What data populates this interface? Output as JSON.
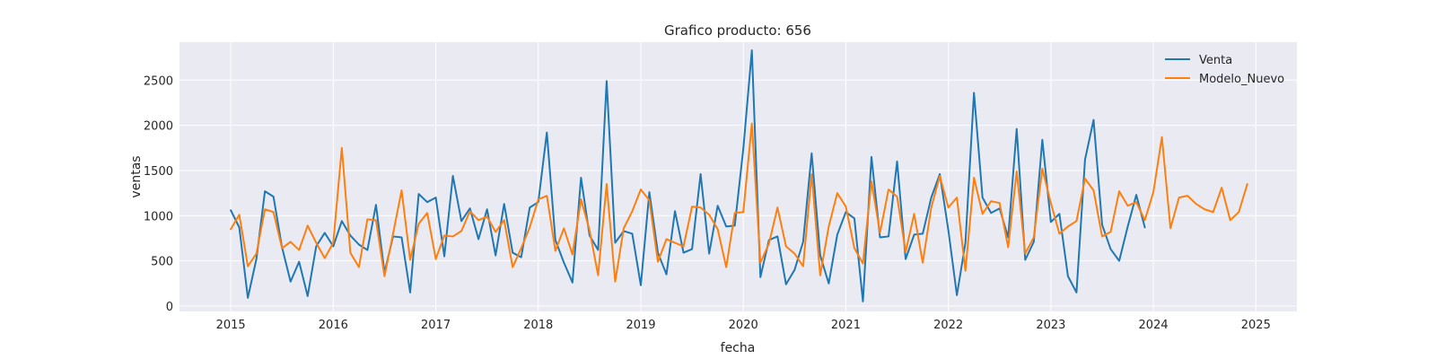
{
  "chart_data": {
    "type": "line",
    "title": "Grafico producto: 656",
    "xlabel": "fecha",
    "ylabel": "ventas",
    "x_start": 2015.0,
    "x_step_months": 1,
    "xlim": [
      2014.5,
      2025.4
    ],
    "ylim": [
      -60,
      2920
    ],
    "xticks": [
      2015,
      2016,
      2017,
      2018,
      2019,
      2020,
      2021,
      2022,
      2023,
      2024,
      2025
    ],
    "yticks": [
      0,
      500,
      1000,
      1500,
      2000,
      2500
    ],
    "grid": true,
    "legend_position": "top-right",
    "series": [
      {
        "name": "Venta",
        "color": "#1f77b4",
        "values": [
          1060,
          870,
          90,
          520,
          1270,
          1210,
          650,
          270,
          490,
          110,
          660,
          810,
          660,
          940,
          780,
          680,
          620,
          1120,
          370,
          770,
          760,
          150,
          1240,
          1150,
          1200,
          550,
          1440,
          940,
          1080,
          740,
          1070,
          560,
          1130,
          590,
          540,
          1090,
          1150,
          1920,
          730,
          480,
          260,
          1420,
          780,
          620,
          2490,
          700,
          830,
          800,
          230,
          1260,
          590,
          350,
          1050,
          590,
          630,
          1460,
          580,
          1110,
          880,
          890,
          1740,
          2830,
          320,
          730,
          770,
          240,
          400,
          710,
          1690,
          560,
          250,
          790,
          1040,
          970,
          50,
          1650,
          760,
          770,
          1600,
          520,
          790,
          800,
          1200,
          1460,
          840,
          120,
          700,
          2360,
          1200,
          1030,
          1080,
          760,
          1960,
          510,
          710,
          1840,
          930,
          1020,
          330,
          150,
          1620,
          2060,
          900,
          630,
          500,
          880,
          1230,
          870
        ]
      },
      {
        "name": "Modelo_Nuevo",
        "color": "#ff7f0e",
        "values": [
          850,
          1010,
          440,
          580,
          1070,
          1040,
          640,
          710,
          620,
          890,
          700,
          530,
          700,
          1750,
          590,
          430,
          960,
          950,
          330,
          800,
          1280,
          510,
          910,
          1030,
          520,
          780,
          770,
          830,
          1050,
          950,
          990,
          820,
          950,
          430,
          640,
          870,
          1180,
          1220,
          610,
          860,
          570,
          1180,
          840,
          340,
          1350,
          270,
          860,
          1050,
          1290,
          1170,
          490,
          740,
          700,
          660,
          1100,
          1090,
          1010,
          850,
          430,
          1030,
          1040,
          2020,
          480,
          690,
          1090,
          660,
          580,
          440,
          1460,
          340,
          880,
          1250,
          1100,
          640,
          470,
          1380,
          810,
          1290,
          1210,
          600,
          1020,
          480,
          1090,
          1440,
          1090,
          1200,
          390,
          1420,
          1020,
          1160,
          1140,
          650,
          1490,
          580,
          760,
          1520,
          1140,
          800,
          880,
          940,
          1410,
          1280,
          770,
          820,
          1270,
          1110,
          1150,
          950,
          1260,
          1870,
          860,
          1200,
          1220,
          1130,
          1070,
          1040,
          1310,
          950,
          1040,
          1350
        ]
      }
    ]
  }
}
